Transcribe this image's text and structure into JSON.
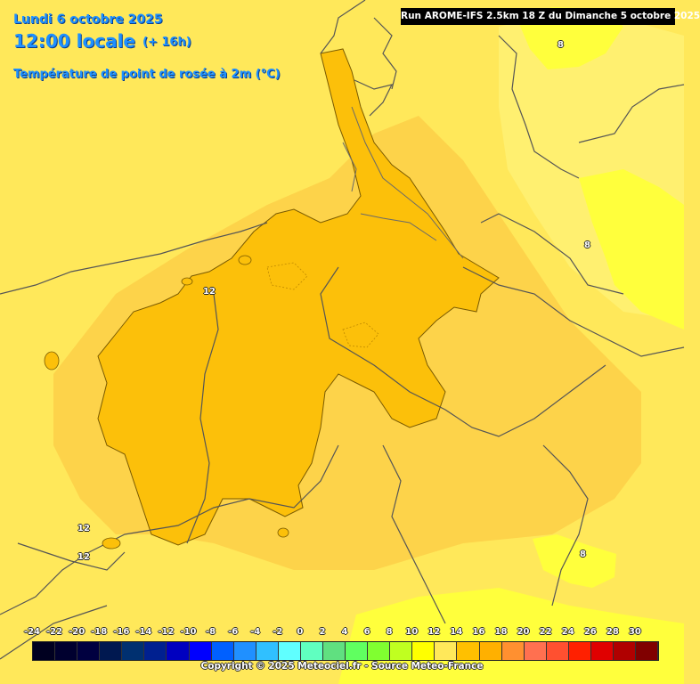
{
  "header": {
    "date": "Lundi 6 octobre 2025",
    "time": "12:00 locale",
    "lead": "(+ 16h)",
    "variable": "Température de point de rosée à 2m (°C)"
  },
  "run_info": "Run AROME-IFS 2.5km 18 Z du Dimanche 5 octobre 2025",
  "copyright": "Copyright © 2025 Meteociel.fr - Source Meteo-France",
  "contour_labels": [
    "12",
    "12",
    "12",
    "8",
    "8",
    "8"
  ],
  "legend": {
    "ticks": [
      "-24",
      "-22",
      "-20",
      "-18",
      "-16",
      "-14",
      "-12",
      "-10",
      "-8",
      "-6",
      "-4",
      "-2",
      "0",
      "2",
      "4",
      "6",
      "8",
      "10",
      "12",
      "14",
      "16",
      "18",
      "20",
      "22",
      "24",
      "26",
      "28",
      "30"
    ],
    "colors": [
      "#000020",
      "#00002f",
      "#000040",
      "#001850",
      "#003070",
      "#002090",
      "#0000c0",
      "#0000ff",
      "#0060ff",
      "#2090ff",
      "#30c0ff",
      "#60ffff",
      "#60ffc0",
      "#60e080",
      "#60ff60",
      "#80ff30",
      "#c0ff20",
      "#ffff00",
      "#ffe85a",
      "#ffc000",
      "#ffb000",
      "#ff9030",
      "#ff7050",
      "#ff5030",
      "#ff2000",
      "#e00000",
      "#b00000",
      "#800000"
    ]
  },
  "field_colors": {
    "t8_10": "#ffff3c",
    "t10_12": "#ffe85a",
    "t12_14": "#fcc00a",
    "t12_14_light": "#fdd34a"
  }
}
